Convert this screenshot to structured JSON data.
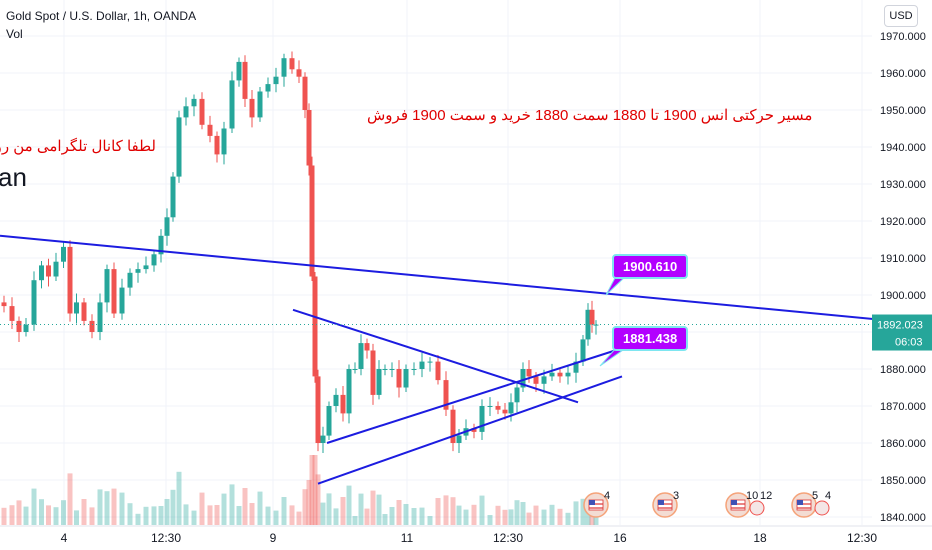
{
  "header": {
    "symbol_title": "Gold Spot / U.S. Dollar, 1h, OANDA",
    "vol_label": "Vol",
    "currency_button": "USD"
  },
  "annotations": {
    "persian_main": "مسیر حرکتی انس 1900 تا 1880 سمت 1880 خرید و سمت 1900 فروش",
    "persian_left": "لطفا کانال تلگرامی من رو",
    "big_fragment": "an"
  },
  "callouts": {
    "upper": "1900.610",
    "lower": "1881.438"
  },
  "price_axis": {
    "current_price": "1892.023",
    "countdown": "06:03"
  },
  "event_badges": [
    {
      "label": "4"
    },
    {
      "label": "3"
    },
    {
      "label": "10"
    },
    {
      "label": "12"
    },
    {
      "label": "5"
    },
    {
      "label": "4"
    }
  ],
  "colors": {
    "up": "#26a69a",
    "down": "#ef5350",
    "trendline": "#1c1ce0",
    "callout": "#b200ff",
    "price_line": "#26a69a",
    "annotation_text": "#e00000"
  },
  "chart_data": {
    "type": "candlestick",
    "title": "Gold Spot / U.S. Dollar, 1h, OANDA",
    "ylim": [
      1838,
      1975
    ],
    "y_ticks": [
      "1970.000",
      "1960.000",
      "1950.000",
      "1940.000",
      "1930.000",
      "1920.000",
      "1910.000",
      "1900.000",
      "1890.000",
      "1880.000",
      "1870.000",
      "1860.000",
      "1850.000",
      "1840.000"
    ],
    "y_tick_values": [
      1970,
      1960,
      1950,
      1940,
      1930,
      1920,
      1910,
      1900,
      1890,
      1880,
      1870,
      1860,
      1850,
      1840
    ],
    "x_ticks": [
      "4",
      "12:30",
      "9",
      "11",
      "12:30",
      "16",
      "18",
      "12:30"
    ],
    "grid": true,
    "current_price": 1892.023,
    "price_path": [
      [
        0,
        1898
      ],
      [
        8,
        1897
      ],
      [
        16,
        1893
      ],
      [
        22,
        1890
      ],
      [
        30,
        1892
      ],
      [
        38,
        1904
      ],
      [
        45,
        1908
      ],
      [
        52,
        1905
      ],
      [
        60,
        1909
      ],
      [
        67,
        1913
      ],
      [
        73,
        1895
      ],
      [
        80,
        1898
      ],
      [
        88,
        1893
      ],
      [
        96,
        1890
      ],
      [
        104,
        1898
      ],
      [
        110,
        1907
      ],
      [
        118,
        1895
      ],
      [
        126,
        1902
      ],
      [
        134,
        1906
      ],
      [
        142,
        1907
      ],
      [
        150,
        1908
      ],
      [
        158,
        1911
      ],
      [
        164,
        1916
      ],
      [
        170,
        1921
      ],
      [
        176,
        1932
      ],
      [
        182,
        1948
      ],
      [
        190,
        1951
      ],
      [
        198,
        1953
      ],
      [
        206,
        1946
      ],
      [
        214,
        1943
      ],
      [
        220,
        1938
      ],
      [
        228,
        1945
      ],
      [
        236,
        1958
      ],
      [
        242,
        1963
      ],
      [
        248,
        1953
      ],
      [
        256,
        1948
      ],
      [
        264,
        1955
      ],
      [
        272,
        1957
      ],
      [
        280,
        1959
      ],
      [
        288,
        1964
      ],
      [
        296,
        1961
      ],
      [
        302,
        1959
      ],
      [
        308,
        1950
      ],
      [
        310,
        1935
      ],
      [
        314,
        1905
      ],
      [
        316,
        1878
      ],
      [
        320,
        1860
      ],
      [
        326,
        1862
      ],
      [
        332,
        1870
      ],
      [
        340,
        1873
      ],
      [
        346,
        1868
      ],
      [
        352,
        1880
      ],
      [
        358,
        1880
      ],
      [
        364,
        1887
      ],
      [
        370,
        1885
      ],
      [
        376,
        1873
      ],
      [
        382,
        1880
      ],
      [
        388,
        1880
      ],
      [
        396,
        1880
      ],
      [
        402,
        1875
      ],
      [
        410,
        1880
      ],
      [
        418,
        1880
      ],
      [
        426,
        1882
      ],
      [
        434,
        1882
      ],
      [
        442,
        1877
      ],
      [
        450,
        1869
      ],
      [
        456,
        1860
      ],
      [
        462,
        1862
      ],
      [
        470,
        1864
      ],
      [
        478,
        1863
      ],
      [
        486,
        1870
      ],
      [
        494,
        1870
      ],
      [
        502,
        1869
      ],
      [
        508,
        1868
      ],
      [
        514,
        1871
      ],
      [
        520,
        1875
      ],
      [
        526,
        1880
      ],
      [
        532,
        1878
      ],
      [
        540,
        1876
      ],
      [
        548,
        1878
      ],
      [
        556,
        1879
      ],
      [
        564,
        1878
      ],
      [
        572,
        1879
      ],
      [
        580,
        1882
      ],
      [
        586,
        1888
      ],
      [
        590,
        1896
      ],
      [
        594,
        1892
      ],
      [
        598,
        1892
      ]
    ],
    "trendlines": [
      {
        "name": "descending resistance",
        "points": [
          [
            0,
            1916
          ],
          [
            932,
            1892
          ]
        ]
      },
      {
        "name": "triangle upper",
        "points": [
          [
            293,
            1896
          ],
          [
            578,
            1871
          ]
        ]
      },
      {
        "name": "triangle lower",
        "points": [
          [
            327,
            1860
          ],
          [
            615,
            1885
          ]
        ]
      },
      {
        "name": "channel lower",
        "points": [
          [
            318,
            1849
          ],
          [
            622,
            1878
          ]
        ]
      }
    ],
    "callout_values": [
      1900.61,
      1881.438
    ]
  }
}
